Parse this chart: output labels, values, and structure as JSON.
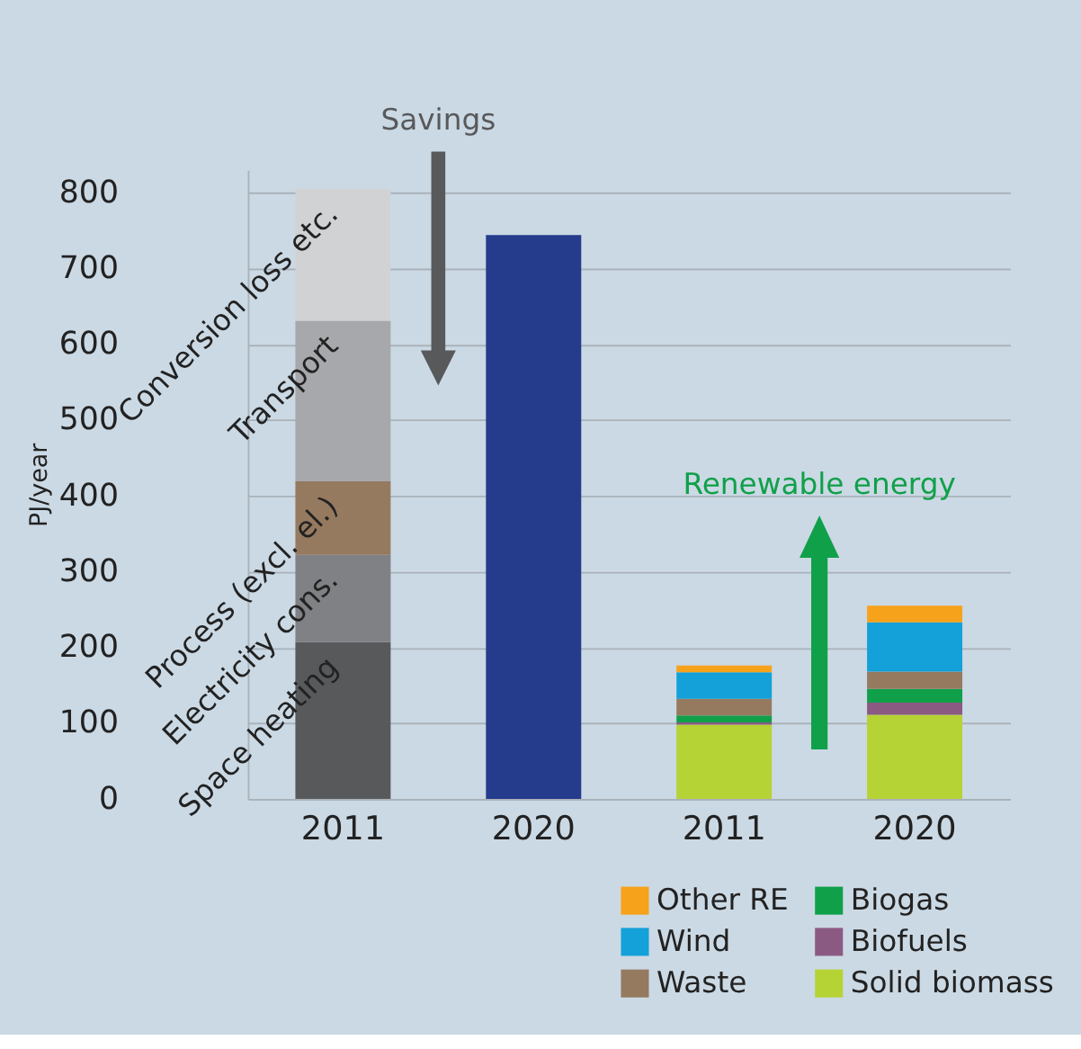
{
  "chart_data": {
    "type": "bar",
    "stacked": true,
    "ylabel": "PJ/year",
    "categories": [
      "2011",
      "2020",
      "2011",
      "2020"
    ],
    "ylim": [
      0,
      830
    ],
    "yticks": [
      0,
      100,
      200,
      300,
      400,
      500,
      600,
      700,
      800
    ],
    "grid": "y",
    "legend": "bottom right",
    "annotations": [
      "Savings",
      "Renewable energy"
    ],
    "series": [
      {
        "name": "Space heating",
        "color": "#58595b",
        "values": [
          207,
          null,
          null,
          null
        ]
      },
      {
        "name": "Electricity cons.",
        "color": "#808184",
        "values": [
          115,
          null,
          null,
          null
        ]
      },
      {
        "name": "Process (excl. el.)",
        "color": "#957a60",
        "values": [
          97,
          null,
          null,
          null
        ]
      },
      {
        "name": "Transport",
        "color": "#a7a8ab",
        "values": [
          212,
          null,
          null,
          null
        ]
      },
      {
        "name": "Conversion loss etc.",
        "color": "#d1d2d4",
        "values": [
          174,
          null,
          null,
          null
        ]
      },
      {
        "color": "#253b8c",
        "values": [
          null,
          744,
          null,
          null
        ]
      },
      {
        "name": "Solid biomass",
        "color": "#b5d334",
        "values": [
          null,
          null,
          98,
          111
        ]
      },
      {
        "name": "Biofuels",
        "color": "#8b5a82",
        "values": [
          null,
          null,
          3,
          16
        ]
      },
      {
        "name": "Biogas",
        "color": "#10a04a",
        "values": [
          null,
          null,
          9,
          18
        ]
      },
      {
        "name": "Waste",
        "color": "#957a60",
        "values": [
          null,
          null,
          22,
          23
        ]
      },
      {
        "name": "Wind",
        "color": "#14a0d9",
        "values": [
          null,
          null,
          35,
          65
        ]
      },
      {
        "name": "Other RE",
        "color": "#f7a21b",
        "values": [
          null,
          null,
          9,
          22
        ]
      }
    ]
  }
}
